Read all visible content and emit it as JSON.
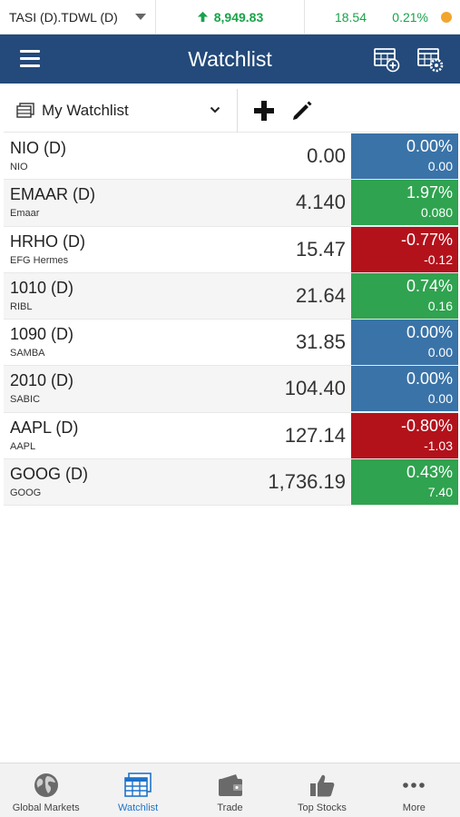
{
  "ticker": {
    "symbol": "TASI (D).TDWL (D)",
    "index_value": "8,949.83",
    "change": "18.54",
    "percent": "0.21%",
    "status_color": "#f2a52e",
    "up_color": "#18a34a"
  },
  "header": {
    "title": "Watchlist",
    "background": "#234a7a"
  },
  "selector": {
    "watchlist_name": "My Watchlist"
  },
  "colors": {
    "flat": "#3a73a8",
    "up": "#2fa34f",
    "down": "#b3121b"
  },
  "rows": [
    {
      "symbol": "NIO (D)",
      "name": "NIO",
      "price": "0.00",
      "pct": "0.00%",
      "chg": "0.00",
      "dir": "flat"
    },
    {
      "symbol": "EMAAR (D)",
      "name": "Emaar",
      "price": "4.140",
      "pct": "1.97%",
      "chg": "0.080",
      "dir": "up"
    },
    {
      "symbol": "HRHO (D)",
      "name": "EFG Hermes",
      "price": "15.47",
      "pct": "-0.77%",
      "chg": "-0.12",
      "dir": "down"
    },
    {
      "symbol": "1010 (D)",
      "name": "RIBL",
      "price": "21.64",
      "pct": "0.74%",
      "chg": "0.16",
      "dir": "up"
    },
    {
      "symbol": "1090 (D)",
      "name": "SAMBA",
      "price": "31.85",
      "pct": "0.00%",
      "chg": "0.00",
      "dir": "flat"
    },
    {
      "symbol": "2010 (D)",
      "name": "SABIC",
      "price": "104.40",
      "pct": "0.00%",
      "chg": "0.00",
      "dir": "flat"
    },
    {
      "symbol": "AAPL (D)",
      "name": "AAPL",
      "price": "127.14",
      "pct": "-0.80%",
      "chg": "-1.03",
      "dir": "down"
    },
    {
      "symbol": "GOOG (D)",
      "name": "GOOG",
      "price": "1,736.19",
      "pct": "0.43%",
      "chg": "7.40",
      "dir": "up"
    }
  ],
  "nav": {
    "items": [
      {
        "label": "Global Markets",
        "icon": "globe-icon"
      },
      {
        "label": "Watchlist",
        "icon": "watchlist-icon",
        "active": true
      },
      {
        "label": "Trade",
        "icon": "wallet-icon"
      },
      {
        "label": "Top Stocks",
        "icon": "thumbs-up-icon"
      },
      {
        "label": "More",
        "icon": "more-icon"
      }
    ]
  }
}
